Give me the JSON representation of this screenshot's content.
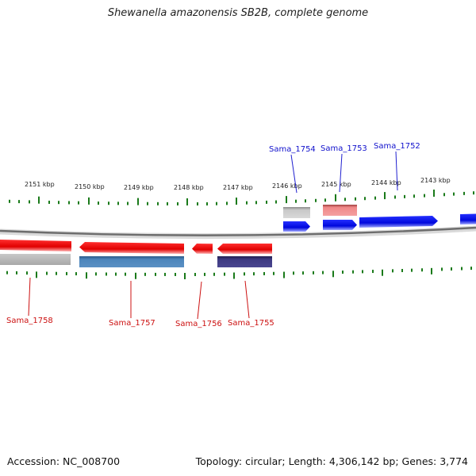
{
  "title": "Shewanella amazonensis SB2B, complete genome",
  "ruler": {
    "labels": [
      "2151 kbp",
      "2150 kbp",
      "2149 kbp",
      "2148 kbp",
      "2147 kbp",
      "2146 kbp",
      "2145 kbp",
      "2144 kbp",
      "2143 kbp"
    ]
  },
  "genes": {
    "forward_labels": [
      "Sama_1754",
      "Sama_1753",
      "Sama_1752"
    ],
    "reverse_labels": [
      "Sama_1758",
      "Sama_1757",
      "Sama_1756",
      "Sama_1755"
    ]
  },
  "colors": {
    "forward": "#0a14e6",
    "reverse": "#e60f0f",
    "forward_label": "#1010cc",
    "reverse_label": "#cc1010",
    "tick": "#1a7a1a",
    "backbone": "#777777",
    "feature_gray": "#b4b4b4",
    "feature_pink": "#ea7a7a",
    "feature_steelblue": "#4a82b8",
    "feature_purple": "#3e3a82"
  },
  "footer": {
    "accession": "Accession: NC_008700",
    "summary": "Topology: circular; Length: 4,306,142 bp; Genes: 3,774"
  }
}
